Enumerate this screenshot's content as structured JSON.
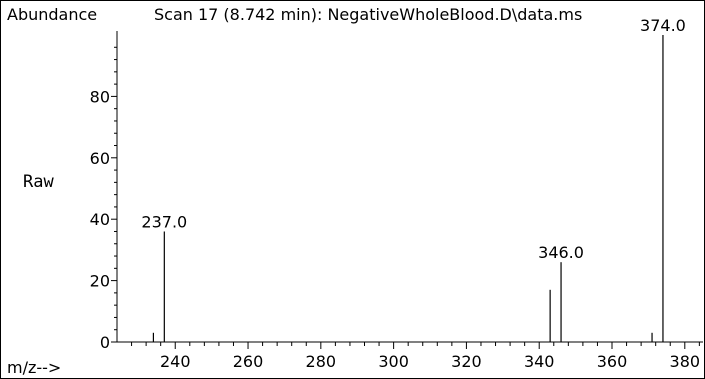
{
  "chart_data": {
    "type": "bar",
    "title": "Scan 17 (8.742 min): NegativeWholeBlood.D\\data.ms",
    "ylabel": "Abundance",
    "xlabel": "m/z-->",
    "side_label": "Raw",
    "xlim": [
      224,
      385
    ],
    "ylim": [
      0,
      100
    ],
    "x_ticks": [
      240,
      260,
      280,
      300,
      320,
      340,
      360,
      380
    ],
    "y_ticks": [
      0,
      20,
      40,
      60,
      80
    ],
    "peaks": [
      {
        "mz": 234,
        "abundance": 3
      },
      {
        "mz": 237.0,
        "abundance": 36,
        "label": "237.0"
      },
      {
        "mz": 343,
        "abundance": 17
      },
      {
        "mz": 346.0,
        "abundance": 26,
        "label": "346.0"
      },
      {
        "mz": 371,
        "abundance": 3
      },
      {
        "mz": 374.0,
        "abundance": 100,
        "label": "374.0"
      }
    ],
    "grid": false,
    "colors": {
      "line": "#000000",
      "background": "#ffffff"
    }
  }
}
